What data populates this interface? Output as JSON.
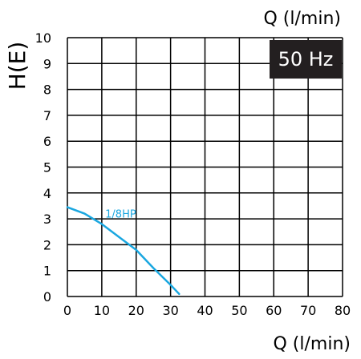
{
  "chart_data": {
    "type": "line",
    "title": "",
    "top_xlabel": "Q (l/min)",
    "xlabel": "Q (l/min)",
    "ylabel": "H(E)",
    "badge": "50 Hz",
    "xlim": [
      0,
      80
    ],
    "ylim": [
      0,
      10
    ],
    "xticks": [
      "0",
      "10",
      "20",
      "30",
      "40",
      "50",
      "60",
      "70",
      "80"
    ],
    "yticks": [
      "0",
      "1",
      "2",
      "3",
      "4",
      "5",
      "6",
      "7",
      "8",
      "9",
      "10"
    ],
    "grid": true,
    "series": [
      {
        "name": "1/8HP",
        "color": "#1aa7e0",
        "x": [
          0,
          5,
          10,
          15,
          20,
          25,
          30,
          32.5
        ],
        "y": [
          3.45,
          3.2,
          2.8,
          2.3,
          1.8,
          1.1,
          0.45,
          0.1
        ]
      }
    ]
  }
}
